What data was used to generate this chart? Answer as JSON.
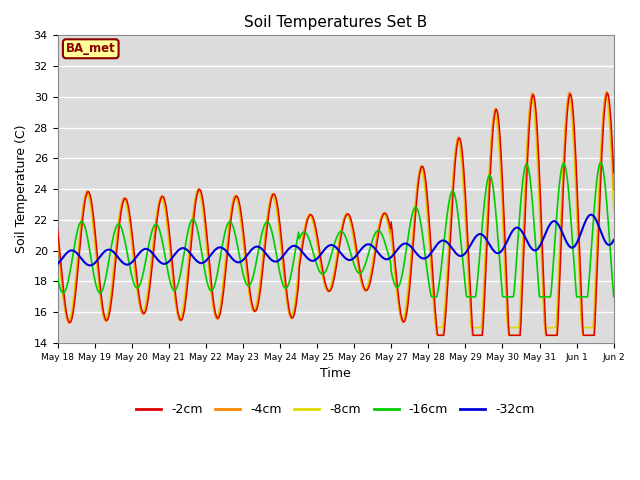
{
  "title": "Soil Temperatures Set B",
  "xlabel": "Time",
  "ylabel": "Soil Temperature (C)",
  "ylim": [
    14,
    34
  ],
  "yticks": [
    14,
    16,
    18,
    20,
    22,
    24,
    26,
    28,
    30,
    32,
    34
  ],
  "bg_color": "#dcdcdc",
  "annotation_text": "BA_met",
  "annotation_bg": "#ffff99",
  "annotation_border": "#8b0000",
  "series_colors": {
    "-2cm": "#dd0000",
    "-4cm": "#ff8800",
    "-8cm": "#dddd00",
    "-16cm": "#00cc00",
    "-32cm": "#0000dd"
  },
  "legend_colors": [
    "#dd0000",
    "#ff8800",
    "#dddd00",
    "#00cc00",
    "#0000dd"
  ],
  "legend_labels": [
    "-2cm",
    "-4cm",
    "-8cm",
    "-16cm",
    "-32cm"
  ],
  "tick_labels": [
    "May 18",
    "May 19",
    "May 20",
    "May 21",
    "May 22",
    "May 23",
    "May 24",
    "May 25",
    "May 26",
    "May 27",
    "May 28",
    "May 29",
    "May 30",
    "May 31",
    "Jun 1",
    "Jun 2"
  ]
}
